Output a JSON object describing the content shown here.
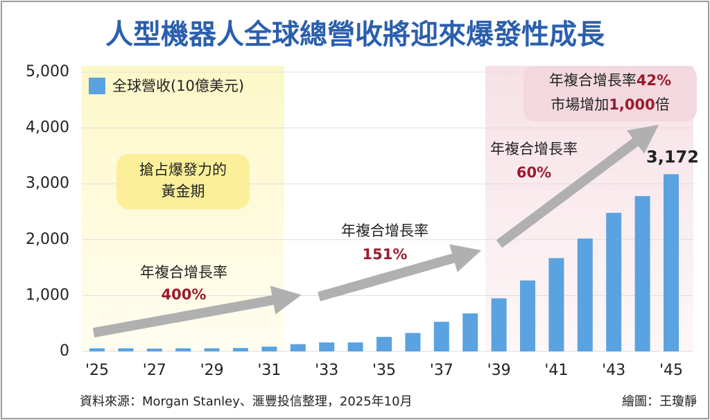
{
  "chart_data": {
    "type": "bar",
    "title": "人型機器人全球總營收將迎來爆發性成長",
    "categories": [
      "'25",
      null,
      "'27",
      null,
      "'29",
      null,
      "'31",
      null,
      "'33",
      null,
      "'35",
      null,
      "'37",
      null,
      "'39",
      null,
      "'41",
      null,
      "'43",
      null,
      "'45"
    ],
    "series": [
      {
        "name": "全球營收(10億美元)",
        "color": "#5aa2e0",
        "values": [
          55,
          55,
          50,
          55,
          55,
          60,
          85,
          130,
          160,
          160,
          260,
          330,
          530,
          680,
          950,
          1270,
          1670,
          2020,
          2480,
          2780,
          3172
        ],
        "value_labels": [
          null,
          null,
          null,
          null,
          null,
          null,
          null,
          null,
          null,
          null,
          null,
          null,
          null,
          null,
          null,
          null,
          null,
          null,
          null,
          null,
          "3,172"
        ]
      }
    ],
    "ylim": [
      0,
      5000
    ],
    "yticks": [
      0,
      {
        "value": 1000,
        "label": "1,000"
      },
      {
        "value": 2000,
        "label": "2,000"
      },
      {
        "value": 3000,
        "label": "3,000"
      },
      {
        "value": 4000,
        "label": "4,000"
      },
      {
        "value": 5000,
        "label": "5,000"
      }
    ],
    "grid": true,
    "annotations": {
      "golden_period": [
        "搶占爆發力的",
        "黃金期"
      ],
      "rates": [
        {
          "label": "年複合增長率",
          "rate": "400%"
        },
        {
          "label": "年複合增長率",
          "rate": "151%"
        },
        {
          "label": "年複合增長率",
          "rate": "60%"
        }
      ],
      "box": {
        "line1": [
          "年複合增長率",
          "42%"
        ],
        "line2": [
          "市場增加",
          "1,000",
          "倍"
        ]
      }
    },
    "source": "資料來源：Morgan Stanley、滙豐投信整理，2025年10月",
    "credit": "繪圖：王瓊靜"
  }
}
